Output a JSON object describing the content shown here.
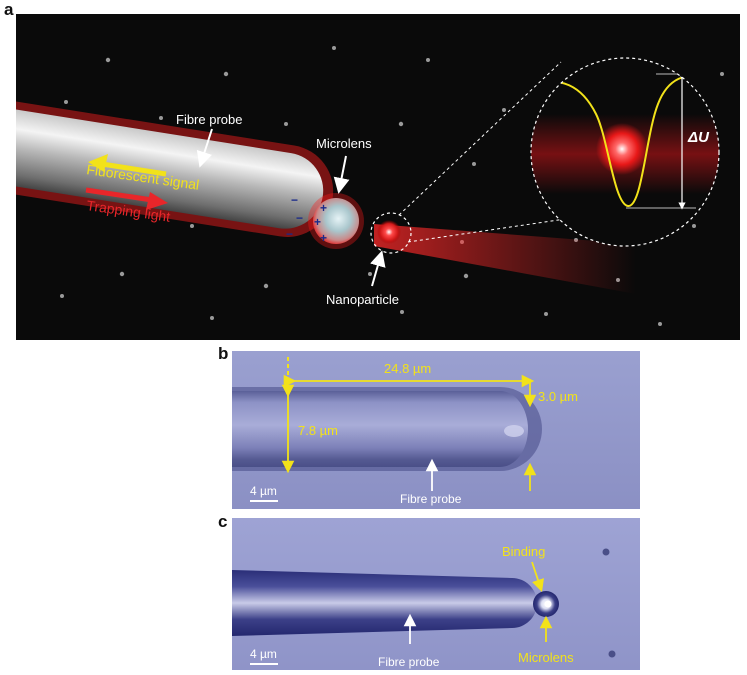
{
  "panels": {
    "a": {
      "letter": "a",
      "labels": {
        "fibre_probe": "Fibre probe",
        "microlens": "Microlens",
        "fluorescent_signal": "Fluorescent signal",
        "trapping_light": "Trapping light",
        "nanoparticle": "Nanoparticle",
        "delta_u": "ΔU"
      },
      "charges": {
        "plus": "+",
        "minus": "−"
      }
    },
    "b": {
      "letter": "b",
      "labels": {
        "length": "24.8 µm",
        "tip_diameter": "3.0 µm",
        "diameter": "7.8 µm",
        "scale_bar": "4 µm",
        "fibre_probe": "Fibre probe"
      }
    },
    "c": {
      "letter": "c",
      "labels": {
        "binding": "Binding",
        "microlens": "Microlens",
        "scale_bar": "4 µm",
        "fibre_probe": "Fibre probe"
      }
    }
  },
  "colors": {
    "annotation_yellow": "#f2e21a",
    "laser_red": "#e8262a",
    "background_dark": "#0a0a0a",
    "micrograph_blue": "#8f93c8"
  }
}
